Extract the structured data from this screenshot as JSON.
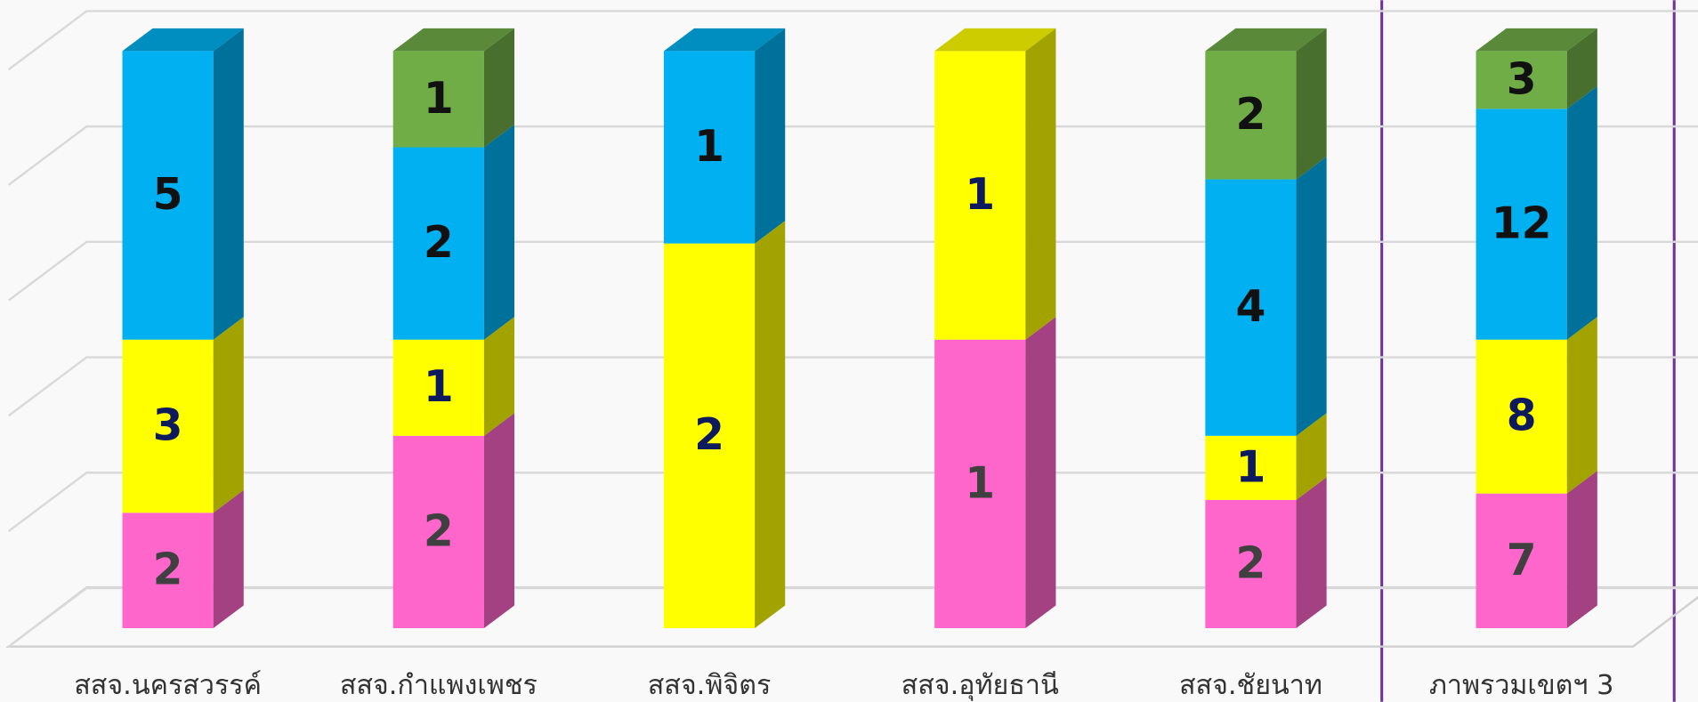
{
  "chart_data": {
    "type": "bar",
    "stacking": "percent",
    "grid": true,
    "categories": [
      "สสจ.นครสวรรค์",
      "สสจ.กำแพงเพชร",
      "สสจ.พิจิตร",
      "สสจ.อุทัยธานี",
      "สสจ.ชัยนาท",
      "ภาพรวมเขตฯ 3"
    ],
    "series": [
      {
        "color": "#ff66cc",
        "label_color": "#404040",
        "values": [
          2,
          2,
          null,
          1,
          2,
          7
        ]
      },
      {
        "color": "#ffff00",
        "label_color": "#0d1a5e",
        "values": [
          3,
          1,
          2,
          1,
          1,
          8
        ]
      },
      {
        "color": "#00b0f0",
        "label_color": "#111111",
        "values": [
          5,
          2,
          1,
          null,
          4,
          12
        ]
      },
      {
        "color": "#70ad47",
        "label_color": "#111111",
        "values": [
          null,
          1,
          null,
          null,
          2,
          3
        ]
      }
    ],
    "ylim": [
      0,
      100
    ],
    "yticks": [
      0,
      20,
      40,
      60,
      80,
      100
    ]
  }
}
